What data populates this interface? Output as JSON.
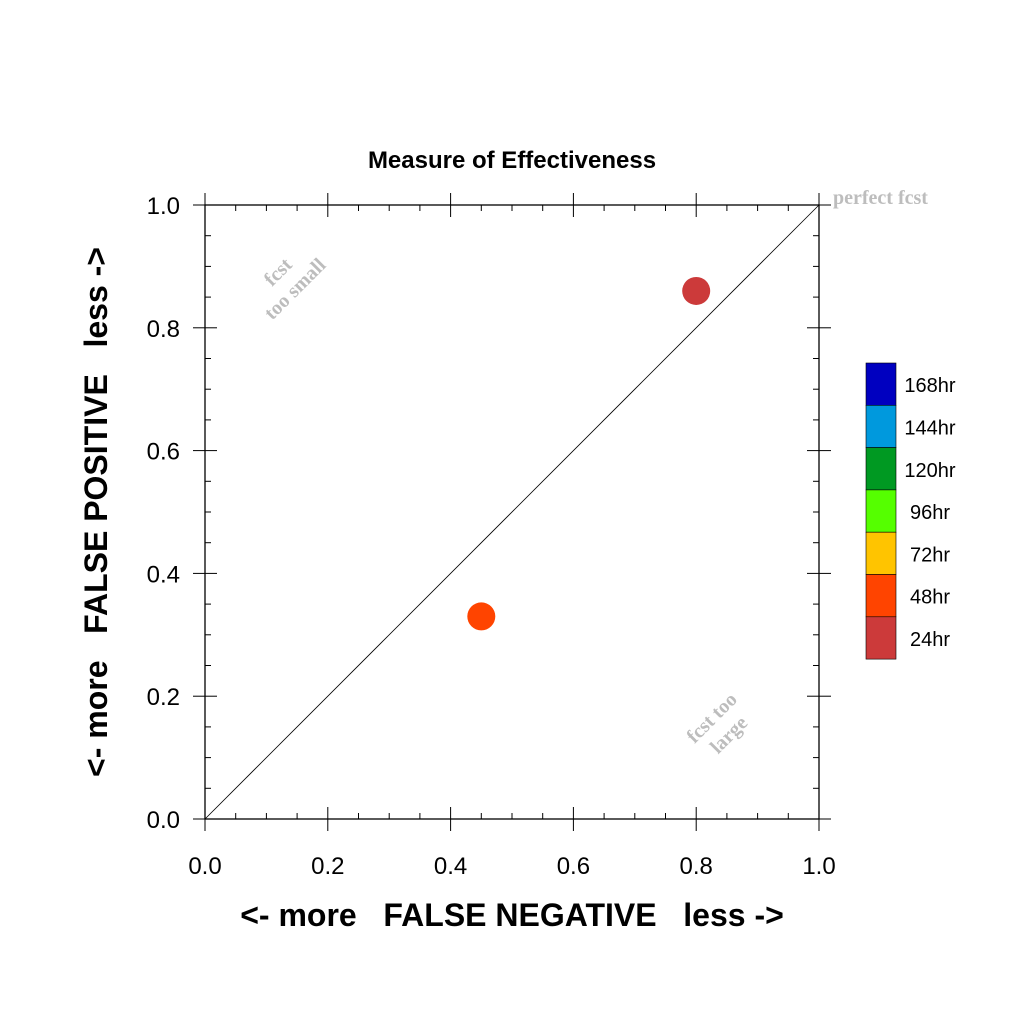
{
  "chart_data": {
    "type": "scatter",
    "title": "Measure of Effectiveness",
    "xlabel": "<- more   FALSE NEGATIVE   less ->",
    "ylabel": "<- more   FALSE POSITIVE   less ->",
    "xlim": [
      0.0,
      1.0
    ],
    "ylim": [
      0.0,
      1.0
    ],
    "x_ticks": [
      "0.0",
      "0.2",
      "0.4",
      "0.6",
      "0.8",
      "1.0"
    ],
    "y_ticks": [
      "0.0",
      "0.2",
      "0.4",
      "0.6",
      "0.8",
      "1.0"
    ],
    "grid": false,
    "reference_line": "diagonal y = x",
    "annotations": {
      "perfect": "perfect fcst",
      "too_small_line1": "fcst",
      "too_small_line2": "too small",
      "too_large_line1": "fcst too",
      "too_large_line2": "large"
    },
    "legend_position": "right",
    "legend": [
      {
        "label": "168hr",
        "color": "#0000c0"
      },
      {
        "label": "144hr",
        "color": "#0099dd"
      },
      {
        "label": "120hr",
        "color": "#009922"
      },
      {
        "label": "96hr",
        "color": "#55ff00"
      },
      {
        "label": "72hr",
        "color": "#ffc400"
      },
      {
        "label": "48hr",
        "color": "#ff4400"
      },
      {
        "label": "24hr",
        "color": "#cc3a3a"
      }
    ],
    "points": [
      {
        "series": "24hr",
        "x": 0.8,
        "y": 0.86,
        "color": "#cc3a3a"
      },
      {
        "series": "48hr",
        "x": 0.45,
        "y": 0.33,
        "color": "#ff4400"
      }
    ]
  }
}
